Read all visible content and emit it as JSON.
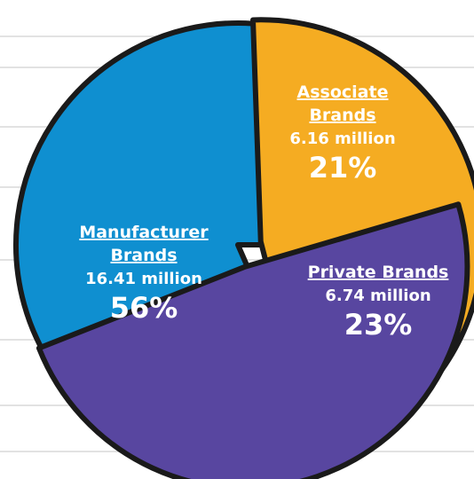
{
  "chart_data": {
    "type": "pie",
    "title": "",
    "slices": [
      {
        "name": "Associate Brands",
        "name_lines": [
          "Associate",
          "Brands"
        ],
        "value_text": "6.16 million",
        "percent_text": "21%",
        "value": 6.16,
        "percent": 21,
        "color": "#f5ac22",
        "text_color": "#ffffff",
        "exploded": true
      },
      {
        "name": "Private Brands",
        "name_lines": [
          "Private Brands"
        ],
        "value_text": "6.74 million",
        "percent_text": "23%",
        "value": 6.74,
        "percent": 23,
        "color": "#5846a0",
        "text_color": "#ffffff",
        "exploded": true
      },
      {
        "name": "Manufacturer Brands",
        "name_lines": [
          "Manufacturer",
          "Brands"
        ],
        "value_text": "16.41 million",
        "percent_text": "56%",
        "value": 16.41,
        "percent": 56,
        "color": "#0f8fd0",
        "text_color": "#ffffff",
        "exploded": false
      }
    ],
    "legend": "none",
    "outline_color": "#1a1a1a",
    "background_stripe_color": "#e2e2e2"
  }
}
